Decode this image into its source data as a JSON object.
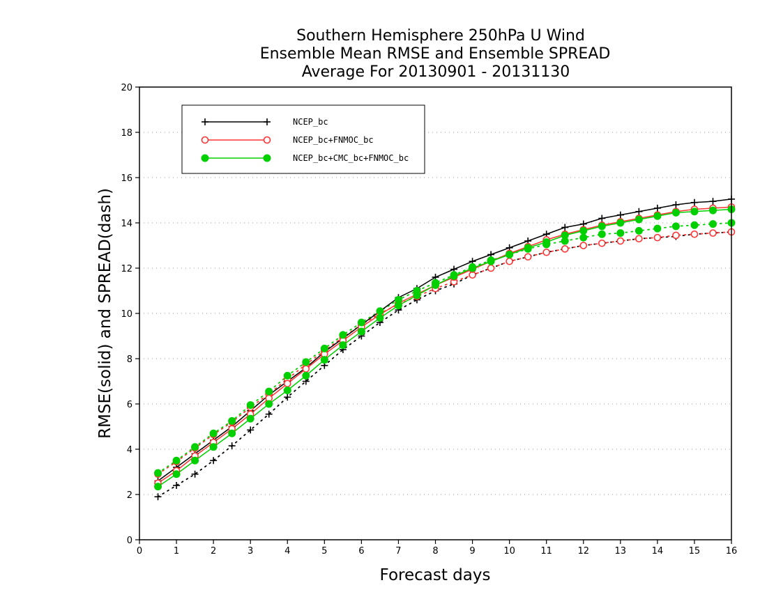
{
  "chart_data": {
    "type": "line",
    "title_lines": [
      "Southern Hemisphere 250hPa U Wind",
      "Ensemble Mean RMSE and Ensemble SPREAD",
      "Average For 20130901 - 20131130"
    ],
    "xlabel": "Forecast days",
    "ylabel": "RMSE(solid) and SPREAD(dash)",
    "xlim": [
      0,
      16
    ],
    "ylim": [
      0,
      20
    ],
    "xticks": [
      0,
      1,
      2,
      3,
      4,
      5,
      6,
      7,
      8,
      9,
      10,
      11,
      12,
      13,
      14,
      15,
      16
    ],
    "yticks": [
      0,
      2,
      4,
      6,
      8,
      10,
      12,
      14,
      16,
      18,
      20
    ],
    "grid": true,
    "legend_position": "top-left",
    "x": [
      0.5,
      1,
      1.5,
      2,
      2.5,
      3,
      3.5,
      4,
      4.5,
      5,
      5.5,
      6,
      6.5,
      7,
      7.5,
      8,
      8.5,
      9,
      9.5,
      10,
      10.5,
      11,
      11.5,
      12,
      12.5,
      13,
      13.5,
      14,
      14.5,
      15,
      15.5,
      16
    ],
    "series": [
      {
        "name": "NCEP_bc",
        "color": "#000000",
        "marker": "plus",
        "rmse": [
          2.6,
          3.2,
          3.8,
          4.4,
          5.0,
          5.7,
          6.4,
          7.0,
          7.6,
          8.3,
          8.9,
          9.5,
          10.1,
          10.7,
          11.1,
          11.6,
          11.95,
          12.3,
          12.6,
          12.9,
          13.2,
          13.5,
          13.8,
          13.95,
          14.2,
          14.35,
          14.5,
          14.65,
          14.8,
          14.9,
          14.95,
          15.05
        ],
        "spread": [
          1.9,
          2.4,
          2.9,
          3.5,
          4.15,
          4.85,
          5.55,
          6.3,
          7.0,
          7.7,
          8.4,
          9.0,
          9.6,
          10.15,
          10.6,
          11.0,
          11.3,
          11.7,
          12.0,
          12.3,
          12.5,
          12.7,
          12.85,
          13.0,
          13.1,
          13.2,
          13.3,
          13.35,
          13.4,
          13.5,
          13.55,
          13.6
        ]
      },
      {
        "name": "NCEP_bc+FNMOC_bc",
        "color": "#ff3333",
        "marker": "open-circle",
        "rmse": [
          2.5,
          3.05,
          3.7,
          4.3,
          4.9,
          5.55,
          6.25,
          6.9,
          7.55,
          8.2,
          8.8,
          9.4,
          9.95,
          10.45,
          10.85,
          11.25,
          11.6,
          11.95,
          12.3,
          12.65,
          12.95,
          13.25,
          13.5,
          13.7,
          13.9,
          14.05,
          14.2,
          14.35,
          14.5,
          14.6,
          14.65,
          14.7
        ],
        "spread": [
          2.9,
          3.45,
          4.05,
          4.65,
          5.2,
          5.85,
          6.45,
          7.1,
          7.75,
          8.35,
          8.95,
          9.5,
          10.0,
          10.4,
          10.75,
          11.1,
          11.4,
          11.7,
          12.0,
          12.3,
          12.5,
          12.7,
          12.85,
          13.0,
          13.1,
          13.2,
          13.3,
          13.35,
          13.45,
          13.5,
          13.55,
          13.6
        ]
      },
      {
        "name": "NCEP_bc+CMC_bc+FNMOC_bc",
        "color": "#00d000",
        "marker": "filled-circle",
        "rmse": [
          2.35,
          2.9,
          3.5,
          4.1,
          4.7,
          5.35,
          6.0,
          6.6,
          7.25,
          7.95,
          8.6,
          9.2,
          9.8,
          10.35,
          10.8,
          11.25,
          11.65,
          12.0,
          12.3,
          12.6,
          12.9,
          13.15,
          13.45,
          13.65,
          13.85,
          14.0,
          14.15,
          14.3,
          14.45,
          14.5,
          14.55,
          14.6
        ],
        "spread": [
          2.95,
          3.5,
          4.1,
          4.7,
          5.25,
          5.95,
          6.55,
          7.25,
          7.85,
          8.45,
          9.05,
          9.6,
          10.1,
          10.6,
          11.0,
          11.35,
          11.7,
          12.05,
          12.35,
          12.6,
          12.85,
          13.05,
          13.2,
          13.35,
          13.5,
          13.55,
          13.65,
          13.75,
          13.85,
          13.9,
          13.95,
          14.0
        ]
      }
    ]
  }
}
